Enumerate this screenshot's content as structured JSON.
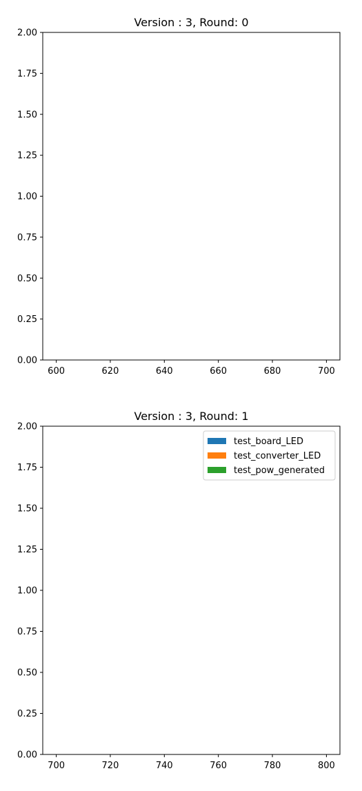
{
  "chart_data": [
    {
      "type": "bar",
      "title": "Version : 3, Round: 0",
      "xlabel": "",
      "ylabel": "",
      "xlim": [
        595,
        705
      ],
      "ylim": [
        0,
        2
      ],
      "xticks": [
        "600",
        "620",
        "640",
        "660",
        "680",
        "700"
      ],
      "yticks": [
        "0.00",
        "0.25",
        "0.50",
        "0.75",
        "1.00",
        "1.25",
        "1.50",
        "1.75",
        "2.00"
      ],
      "series": [],
      "legend": null
    },
    {
      "type": "bar",
      "title": "Version : 3, Round: 1",
      "xlabel": "",
      "ylabel": "",
      "xlim": [
        695,
        805
      ],
      "ylim": [
        0,
        2
      ],
      "xticks": [
        "700",
        "720",
        "740",
        "760",
        "780",
        "800"
      ],
      "yticks": [
        "0.00",
        "0.25",
        "0.50",
        "0.75",
        "1.00",
        "1.25",
        "1.50",
        "1.75",
        "2.00"
      ],
      "series": [
        {
          "name": "test_board_LED",
          "color": "#1f77b4",
          "values": []
        },
        {
          "name": "test_converter_LED",
          "color": "#ff7f0e",
          "values": []
        },
        {
          "name": "test_pow_generated",
          "color": "#2ca02c",
          "values": []
        }
      ],
      "legend": "top-right"
    }
  ]
}
